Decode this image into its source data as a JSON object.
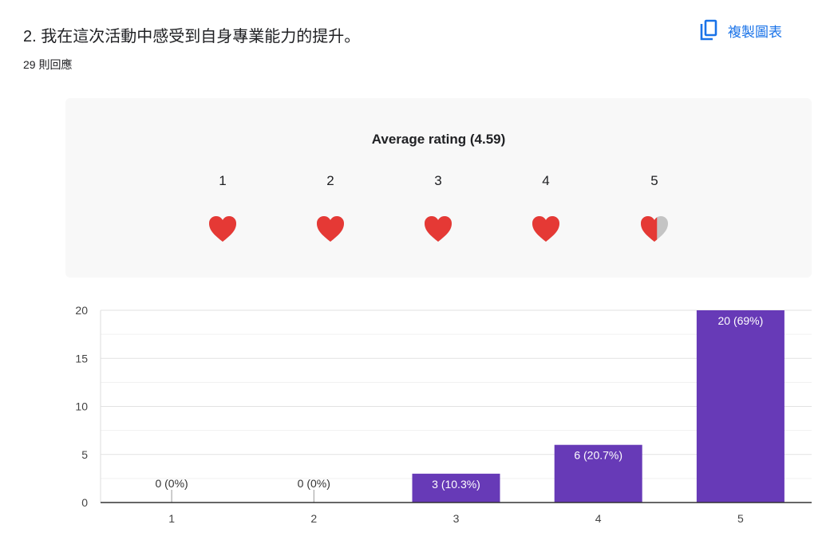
{
  "question": {
    "title": "2. 我在這次活動中感受到自身專業能力的提升。",
    "responses": "29 則回應"
  },
  "toolbar": {
    "copy_label": "複製圖表",
    "copy_icon": "copy-icon"
  },
  "rating": {
    "title": "Average rating (4.59)",
    "average": 4.59,
    "scale": [
      "1",
      "2",
      "3",
      "4",
      "5"
    ],
    "icon": "heart-icon",
    "filled_color": "#e53935",
    "empty_color": "#c4c4c4"
  },
  "chart_data": {
    "type": "bar",
    "categories": [
      "1",
      "2",
      "3",
      "4",
      "5"
    ],
    "values": [
      0,
      0,
      3,
      6,
      20
    ],
    "labels": [
      "0 (0%)",
      "0 (0%)",
      "3 (10.3%)",
      "6 (20.7%)",
      "20 (69%)"
    ],
    "ylim": [
      0,
      20
    ],
    "yticks": [
      0,
      5,
      10,
      15,
      20
    ],
    "grid": true,
    "bar_color": "#673ab7"
  }
}
